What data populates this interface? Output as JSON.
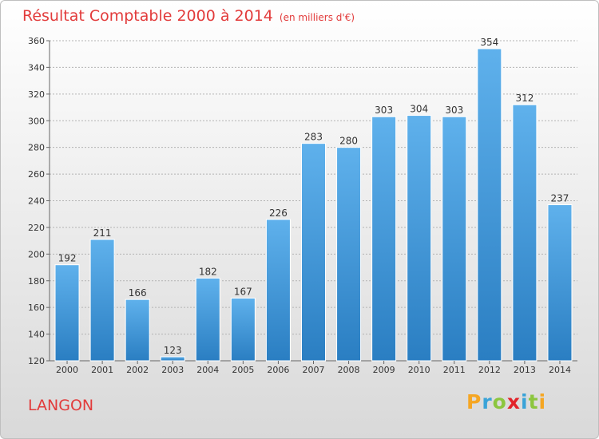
{
  "header": {
    "title": "Résultat Comptable 2000 à 2014",
    "subtitle": "(en milliers d'€)"
  },
  "footer": {
    "place": "LANGON",
    "logo_letters": [
      "P",
      "r",
      "o",
      "x",
      "i",
      "t",
      "i"
    ],
    "logo_colors": [
      "#f5a623",
      "#3aa3d8",
      "#8cc63f",
      "#e2232a",
      "#3aa3d8",
      "#8cc63f",
      "#f5a623"
    ]
  },
  "colors": {
    "bar_light": "#5fb1ec",
    "bar_dark": "#2a7ec2",
    "grid": "#b3b3b3",
    "text": "#333333",
    "accent": "#e23b3b"
  },
  "chart_data": {
    "type": "bar",
    "categories": [
      "2000",
      "2001",
      "2002",
      "2003",
      "2004",
      "2005",
      "2006",
      "2007",
      "2008",
      "2009",
      "2010",
      "2011",
      "2012",
      "2013",
      "2014"
    ],
    "values": [
      192,
      211,
      166,
      123,
      182,
      167,
      226,
      283,
      280,
      303,
      304,
      303,
      354,
      312,
      237
    ],
    "ylim": [
      120,
      360
    ],
    "yticks": [
      120,
      140,
      160,
      180,
      200,
      220,
      240,
      260,
      280,
      300,
      320,
      340,
      360
    ],
    "grid": true,
    "xlabel": "",
    "ylabel": ""
  }
}
